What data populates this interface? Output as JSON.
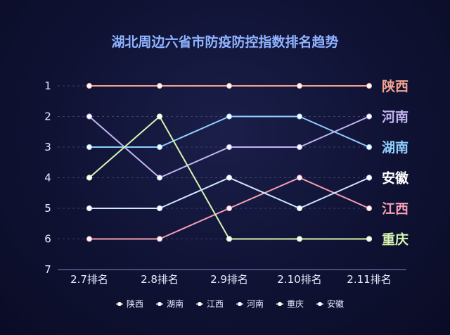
{
  "chart_data": {
    "type": "line",
    "title": "湖北周边六省市防疫防控指数排名趋势",
    "categories": [
      "2.7排名",
      "2.8排名",
      "2.9排名",
      "2.10排名",
      "2.11排名"
    ],
    "y_ticks": [
      "1",
      "2",
      "3",
      "4",
      "5",
      "6",
      "7"
    ],
    "ylim": [
      1,
      7
    ],
    "y_inverted": true,
    "grid": "horizontal dashed",
    "legend_position": "bottom",
    "series": [
      {
        "name": "陕西",
        "color": "#f4a48f",
        "values": [
          1,
          1,
          1,
          1,
          1
        ]
      },
      {
        "name": "湖南",
        "color": "#8fd0ff",
        "values": [
          3,
          3,
          2,
          2,
          3
        ]
      },
      {
        "name": "江西",
        "color": "#f5a0b4",
        "values": [
          6,
          6,
          5,
          4,
          5
        ]
      },
      {
        "name": "河南",
        "color": "#c3b3f2",
        "values": [
          2,
          4,
          3,
          3,
          2
        ]
      },
      {
        "name": "重庆",
        "color": "#d6f5b0",
        "values": [
          4,
          2,
          6,
          6,
          6
        ]
      },
      {
        "name": "安徽",
        "color": "#d0e6ff",
        "values": [
          5,
          5,
          4,
          5,
          4
        ]
      }
    ],
    "end_labels": [
      {
        "text": "陕西",
        "rank": 1,
        "color": "#f4a48f"
      },
      {
        "text": "河南",
        "rank": 2,
        "color": "#c3b3f2"
      },
      {
        "text": "湖南",
        "rank": 3,
        "color": "#8fd0ff"
      },
      {
        "text": "安徽",
        "rank": 4,
        "color": "#ffffff"
      },
      {
        "text": "江西",
        "rank": 5,
        "color": "#f5a0b4"
      },
      {
        "text": "重庆",
        "rank": 6,
        "color": "#d6f5b0"
      }
    ]
  }
}
